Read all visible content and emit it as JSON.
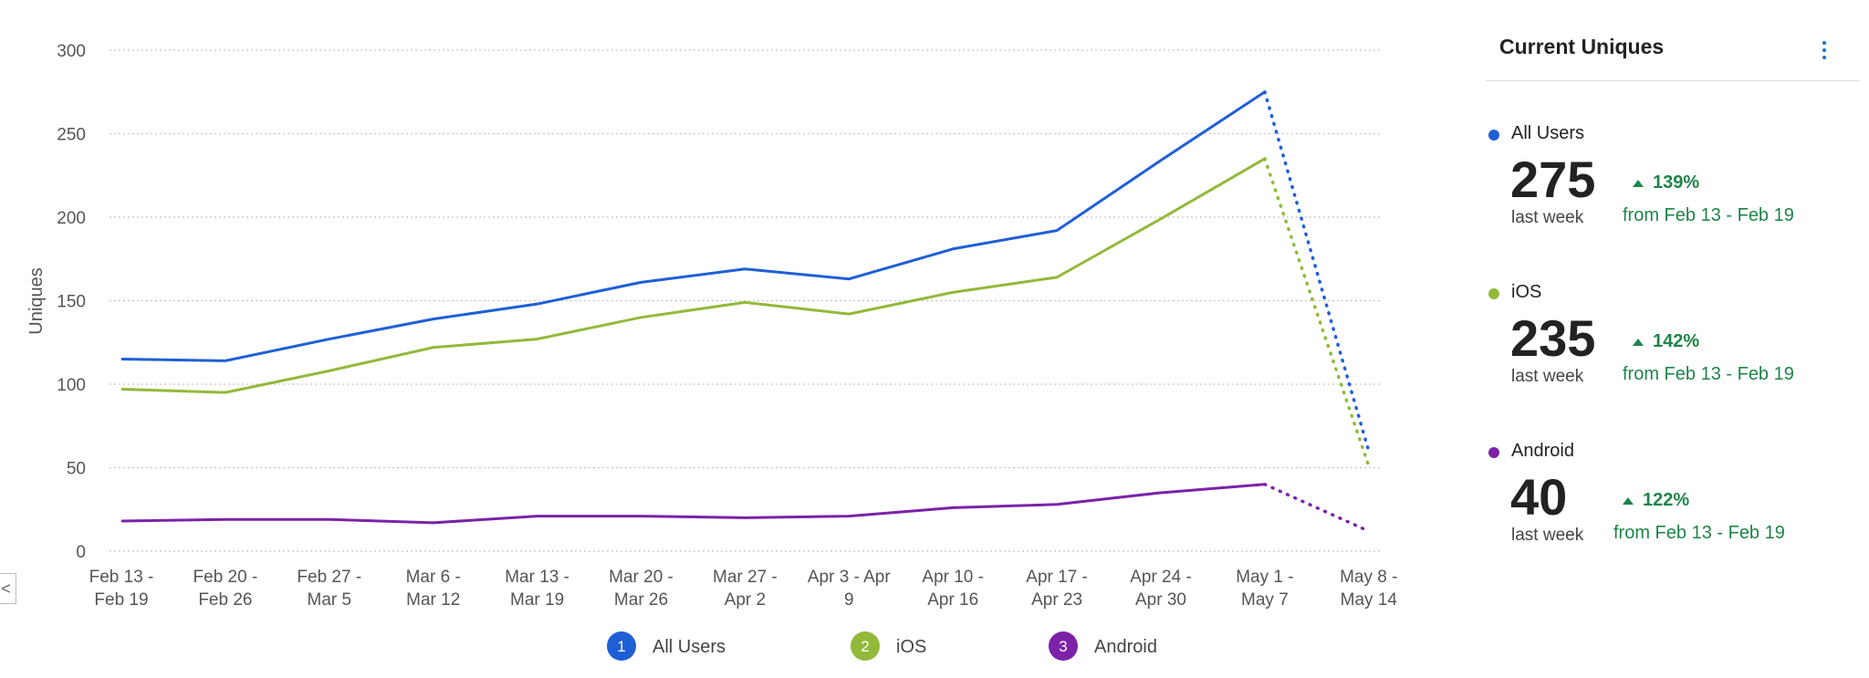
{
  "chart_data": {
    "type": "line",
    "ylabel": "Uniques",
    "ylim": [
      0,
      300
    ],
    "yticks": [
      0,
      50,
      100,
      150,
      200,
      250,
      300
    ],
    "grid": "horizontal dotted",
    "legend_placement": "bottom",
    "categories": [
      [
        "Feb 13 -",
        "Feb 19"
      ],
      [
        "Feb 20 -",
        "Feb 26"
      ],
      [
        "Feb 27 -",
        "Mar 5"
      ],
      [
        "Mar 6 -",
        "Mar 12"
      ],
      [
        "Mar 13 -",
        "Mar 19"
      ],
      [
        "Mar 20 -",
        "Mar 26"
      ],
      [
        "Mar 27 -",
        "Apr 2"
      ],
      [
        "Apr 3 - Apr",
        "9"
      ],
      [
        "Apr 10 -",
        "Apr 16"
      ],
      [
        "Apr 17 -",
        "Apr 23"
      ],
      [
        "Apr 24 -",
        "Apr 30"
      ],
      [
        "May 1 -",
        "May 7"
      ],
      [
        "May 8 -",
        "May 14"
      ]
    ],
    "incomplete_last_point": true,
    "series": [
      {
        "name": "All Users",
        "legend_number": "1",
        "color": "#1f5fd6",
        "values": [
          115,
          114,
          127,
          139,
          148,
          161,
          169,
          163,
          181,
          192,
          234,
          275,
          60
        ]
      },
      {
        "name": "iOS",
        "legend_number": "2",
        "color": "#93b93a",
        "values": [
          97,
          95,
          108,
          122,
          127,
          140,
          149,
          142,
          155,
          164,
          199,
          235,
          51
        ]
      },
      {
        "name": "Android",
        "legend_number": "3",
        "color": "#7c22a8",
        "values": [
          18,
          19,
          19,
          17,
          21,
          21,
          20,
          21,
          26,
          28,
          35,
          40,
          12
        ]
      }
    ]
  },
  "panel": {
    "title": "Current Uniques",
    "menu_icon": "kebab-menu-icon",
    "metrics": [
      {
        "name": "All Users",
        "color": "#1f5fd6",
        "value": "275",
        "sub": "last week",
        "change": "139%",
        "from": "from Feb 13 - Feb 19"
      },
      {
        "name": "iOS",
        "color": "#93b93a",
        "value": "235",
        "sub": "last week",
        "change": "142%",
        "from": "from Feb 13 - Feb 19"
      },
      {
        "name": "Android",
        "color": "#7c22a8",
        "value": "40",
        "sub": "last week",
        "change": "122%",
        "from": "from Feb 13 - Feb 19"
      }
    ]
  },
  "collapse_tab": {
    "glyph": "<"
  }
}
